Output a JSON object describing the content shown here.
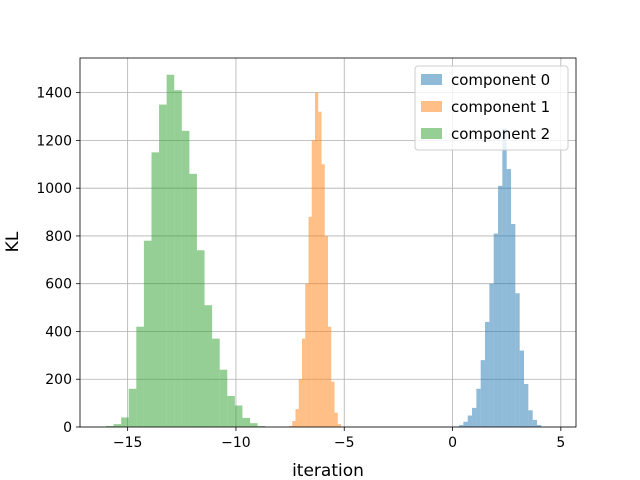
{
  "chart_data": {
    "type": "histogram",
    "xlabel": "iteration",
    "ylabel": "KL",
    "xlim": [
      -17.2,
      5.7
    ],
    "ylim": [
      0,
      1545
    ],
    "xticks": [
      -15,
      -10,
      -5,
      0,
      5
    ],
    "xtick_labels": [
      "−15",
      "−10",
      "−5",
      "0",
      "5"
    ],
    "yticks": [
      0,
      200,
      400,
      600,
      800,
      1000,
      1200,
      1400
    ],
    "ytick_labels": [
      "0",
      "200",
      "400",
      "600",
      "800",
      "1000",
      "1200",
      "1400"
    ],
    "grid": true,
    "legend_position": "upper right",
    "series": [
      {
        "name": "component 0",
        "color": "#1f77b4",
        "bins": [
          [
            0.1,
            0.3,
            2
          ],
          [
            0.3,
            0.5,
            8
          ],
          [
            0.5,
            0.7,
            22
          ],
          [
            0.7,
            0.9,
            48
          ],
          [
            0.9,
            1.1,
            80
          ],
          [
            1.1,
            1.3,
            160
          ],
          [
            1.3,
            1.5,
            280
          ],
          [
            1.5,
            1.7,
            440
          ],
          [
            1.7,
            1.9,
            600
          ],
          [
            1.9,
            2.1,
            810
          ],
          [
            2.1,
            2.3,
            1010
          ],
          [
            2.3,
            2.5,
            1250
          ],
          [
            2.5,
            2.7,
            1080
          ],
          [
            2.7,
            2.9,
            850
          ],
          [
            2.9,
            3.1,
            560
          ],
          [
            3.1,
            3.3,
            320
          ],
          [
            3.3,
            3.5,
            180
          ],
          [
            3.5,
            3.7,
            70
          ],
          [
            3.7,
            3.9,
            30
          ],
          [
            3.9,
            4.1,
            8
          ]
        ]
      },
      {
        "name": "component 1",
        "color": "#ff7f0e",
        "bins": [
          [
            -7.55,
            -7.4,
            4
          ],
          [
            -7.4,
            -7.25,
            25
          ],
          [
            -7.25,
            -7.1,
            75
          ],
          [
            -7.1,
            -6.95,
            200
          ],
          [
            -6.95,
            -6.8,
            370
          ],
          [
            -6.8,
            -6.65,
            600
          ],
          [
            -6.65,
            -6.5,
            880
          ],
          [
            -6.5,
            -6.35,
            1200
          ],
          [
            -6.35,
            -6.2,
            1400
          ],
          [
            -6.2,
            -6.05,
            1320
          ],
          [
            -6.05,
            -5.9,
            1100
          ],
          [
            -5.9,
            -5.75,
            800
          ],
          [
            -5.75,
            -5.6,
            420
          ],
          [
            -5.6,
            -5.45,
            190
          ],
          [
            -5.45,
            -5.3,
            60
          ],
          [
            -5.3,
            -5.15,
            12
          ]
        ]
      },
      {
        "name": "component 2",
        "color": "#2ca02c",
        "bins": [
          [
            -16.0,
            -15.65,
            4
          ],
          [
            -15.65,
            -15.3,
            12
          ],
          [
            -15.3,
            -14.95,
            40
          ],
          [
            -14.95,
            -14.6,
            160
          ],
          [
            -14.6,
            -14.25,
            420
          ],
          [
            -14.25,
            -13.9,
            780
          ],
          [
            -13.9,
            -13.55,
            1150
          ],
          [
            -13.55,
            -13.2,
            1350
          ],
          [
            -13.2,
            -12.85,
            1475
          ],
          [
            -12.85,
            -12.5,
            1410
          ],
          [
            -12.5,
            -12.15,
            1240
          ],
          [
            -12.15,
            -11.8,
            1060
          ],
          [
            -11.8,
            -11.45,
            740
          ],
          [
            -11.45,
            -11.1,
            510
          ],
          [
            -11.1,
            -10.75,
            370
          ],
          [
            -10.75,
            -10.4,
            240
          ],
          [
            -10.4,
            -10.05,
            130
          ],
          [
            -10.05,
            -9.7,
            90
          ],
          [
            -9.7,
            -9.35,
            38
          ],
          [
            -9.35,
            -9.0,
            16
          ],
          [
            -9.0,
            -8.65,
            4
          ]
        ]
      }
    ]
  }
}
